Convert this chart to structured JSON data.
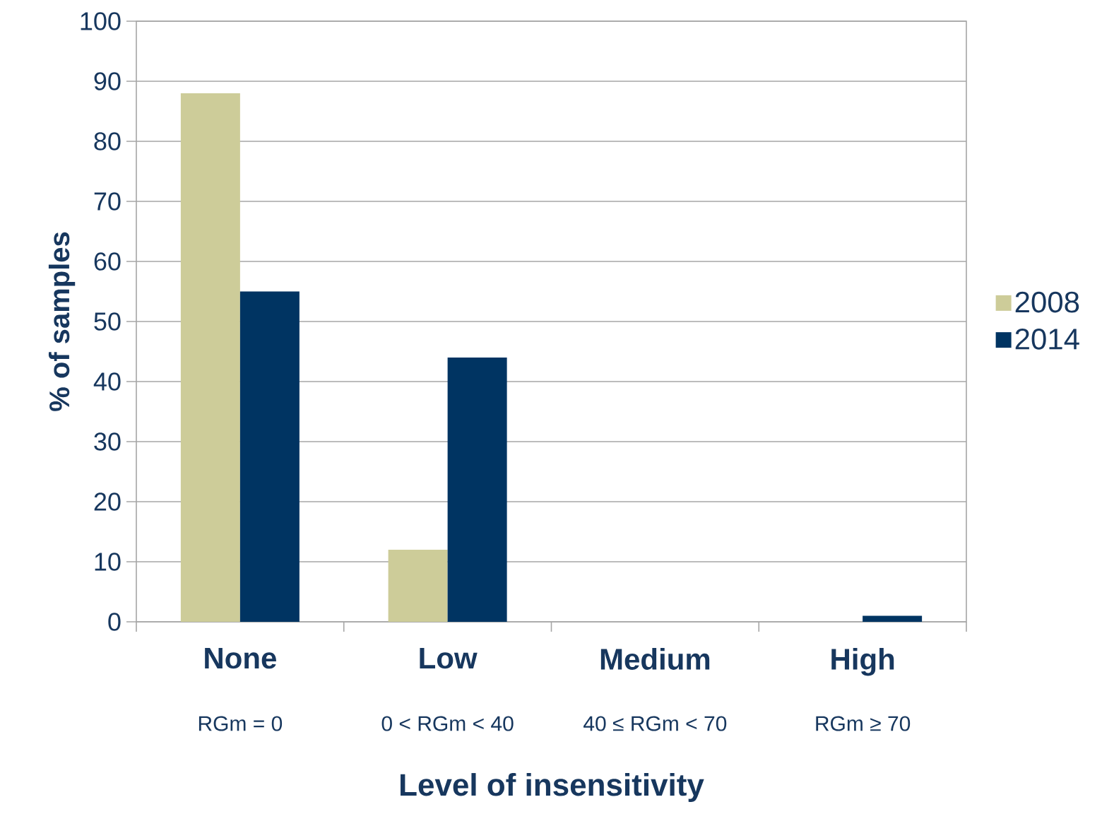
{
  "chart_data": {
    "type": "bar",
    "xlabel": "Level of insensitivity",
    "ylabel": "% of samples",
    "categories": [
      "None",
      "Low",
      "Medium",
      "High"
    ],
    "series": [
      {
        "name": "2008",
        "color": "#cdcc99",
        "values": [
          88,
          12,
          0,
          0
        ]
      },
      {
        "name": "2014",
        "color": "#003462",
        "values": [
          55,
          44,
          0,
          1
        ]
      }
    ],
    "ylim": [
      0,
      100
    ],
    "yticks": [
      0,
      10,
      20,
      30,
      40,
      50,
      60,
      70,
      80,
      90,
      100
    ],
    "grid": "y",
    "legend": "right",
    "annotations": [
      "RGm = 0",
      "0 < RGm < 40",
      "40 ≤ RGm < 70",
      "RGm ≥ 70"
    ]
  }
}
